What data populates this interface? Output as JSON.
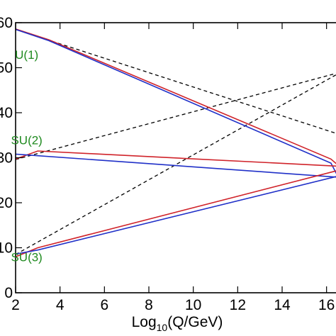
{
  "chart_data": {
    "type": "line",
    "xlabel_main": "Log",
    "xlabel_sub": "10",
    "xlabel_rest": "(Q/GeV)",
    "ylabel": "",
    "xlim": [
      2,
      17
    ],
    "ylim": [
      0,
      60
    ],
    "x_ticks": [
      2,
      4,
      6,
      8,
      10,
      12,
      14,
      16
    ],
    "x_tick_labels": [
      "2",
      "4",
      "6",
      "8",
      "10",
      "12",
      "14",
      "16"
    ],
    "y_ticks": [
      0,
      10,
      20,
      30,
      40,
      50,
      60
    ],
    "y_tick_labels": [
      "0",
      "10",
      "20",
      "30",
      "40",
      "50",
      "60"
    ],
    "grid": false,
    "annotations": [
      {
        "text": "U(1)",
        "x": 2.5,
        "y": 52,
        "color": "#1f8a1f"
      },
      {
        "text": "SU(2)",
        "x": 2.5,
        "y": 33,
        "color": "#1f8a1f"
      },
      {
        "text": "SU(3)",
        "x": 2.5,
        "y": 7,
        "color": "#1f8a1f"
      }
    ],
    "series": [
      {
        "style": "dashed",
        "color": "#000000",
        "points": [
          [
            2,
            58.5
          ],
          [
            17,
            34.5
          ]
        ]
      },
      {
        "style": "dashed",
        "color": "#000000",
        "points": [
          [
            2,
            29.6
          ],
          [
            17,
            49.5
          ]
        ]
      },
      {
        "style": "dashed",
        "color": "#000000",
        "points": [
          [
            2,
            8.5
          ],
          [
            17,
            50.0
          ]
        ]
      },
      {
        "style": "solid",
        "color": "#d0232a",
        "points": [
          [
            2,
            58.6
          ],
          [
            3.5,
            56.2
          ],
          [
            16.2,
            29.7
          ],
          [
            17,
            26.3
          ]
        ]
      },
      {
        "style": "solid",
        "color": "#2030c8",
        "points": [
          [
            2,
            58.5
          ],
          [
            3.5,
            56.0
          ],
          [
            16.2,
            28.8
          ],
          [
            17,
            21.2
          ]
        ]
      },
      {
        "style": "solid",
        "color": "#d0232a",
        "points": [
          [
            2,
            29.7
          ],
          [
            3.0,
            31.5
          ],
          [
            17,
            28.0
          ]
        ]
      },
      {
        "style": "solid",
        "color": "#2030c8",
        "points": [
          [
            2,
            30.8
          ],
          [
            17,
            25.5
          ]
        ]
      },
      {
        "style": "solid",
        "color": "#d0232a",
        "points": [
          [
            2,
            8.0
          ],
          [
            3.0,
            10.0
          ],
          [
            17,
            27.8
          ]
        ]
      },
      {
        "style": "solid",
        "color": "#2030c8",
        "points": [
          [
            2,
            8.6
          ],
          [
            3.0,
            9.5
          ],
          [
            17,
            26.5
          ]
        ]
      }
    ]
  }
}
